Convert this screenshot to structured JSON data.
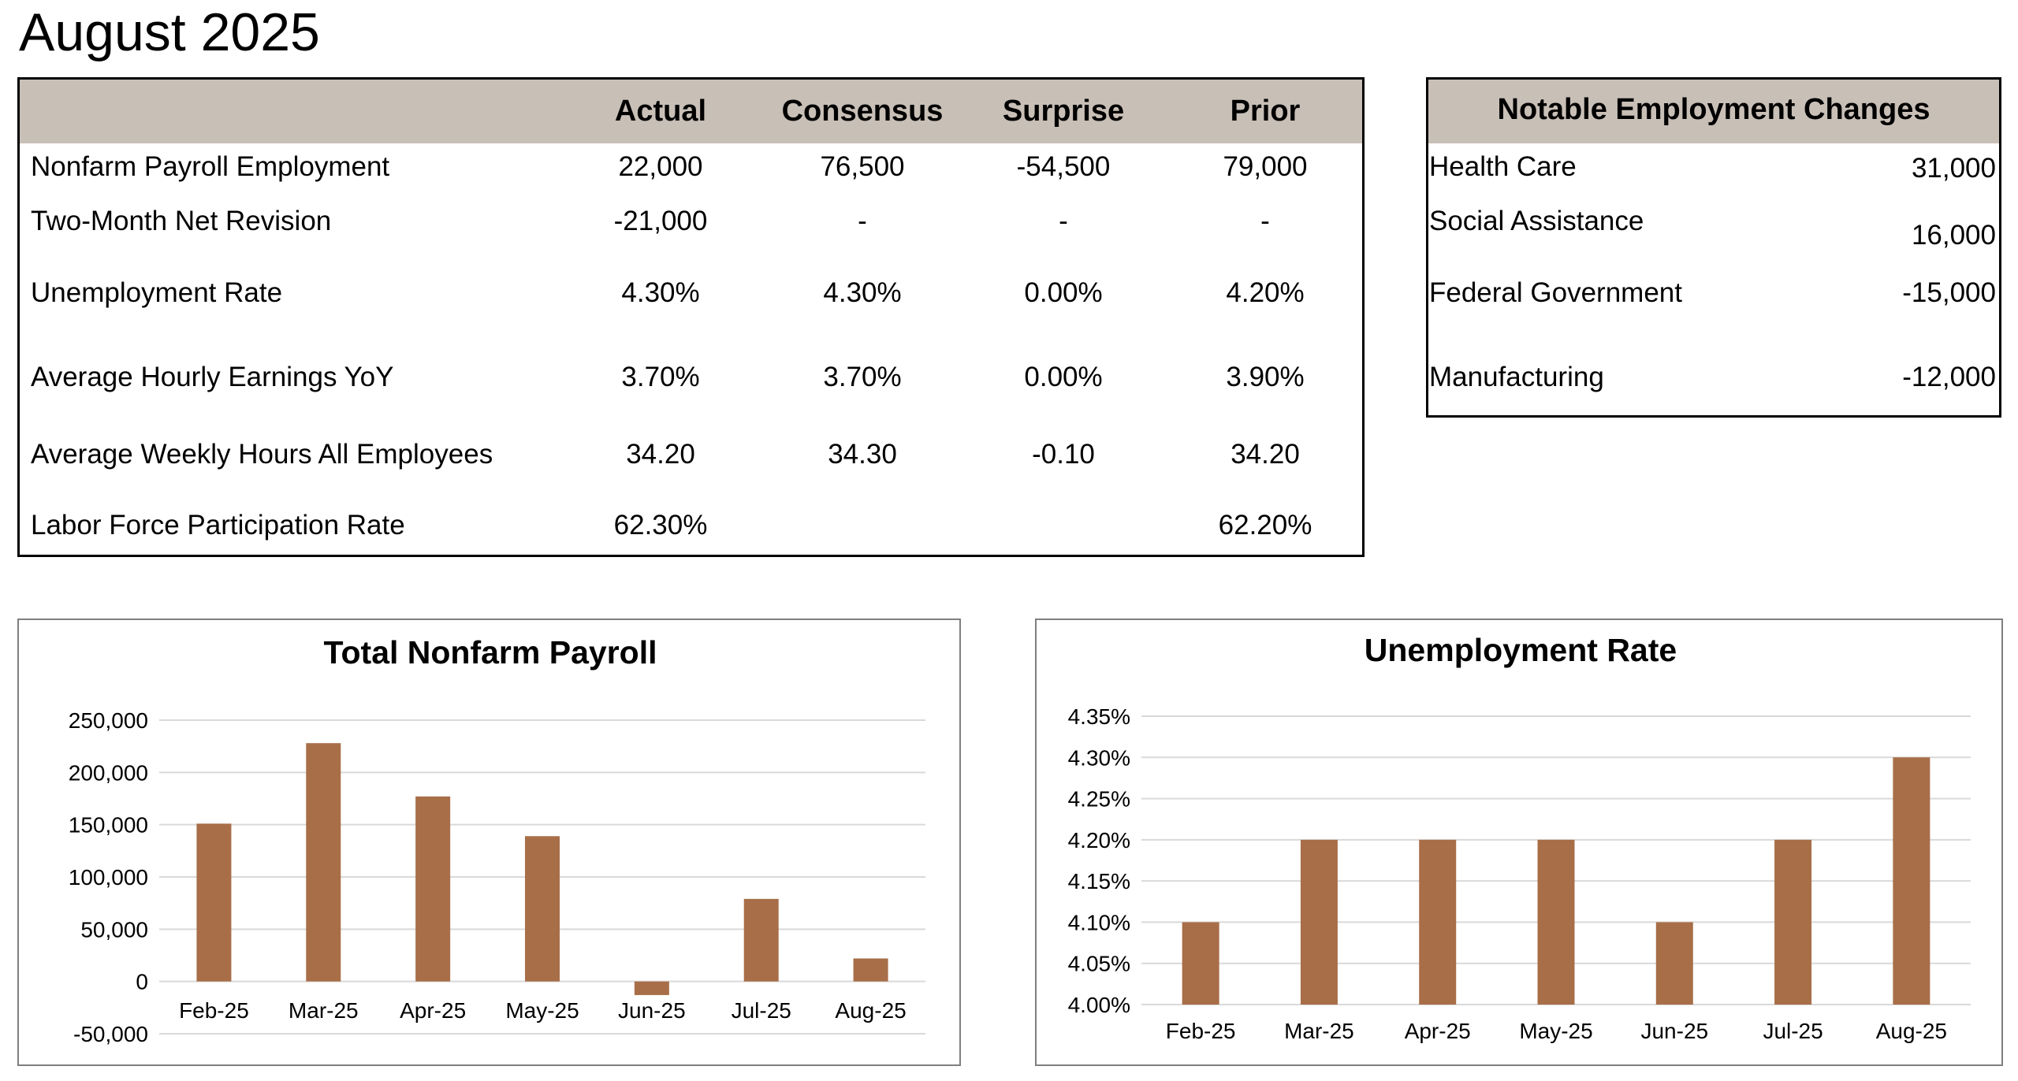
{
  "title": "August 2025",
  "main_table": {
    "columns": [
      "Actual",
      "Consensus",
      "Surprise",
      "Prior"
    ],
    "rows": [
      {
        "label": "Nonfarm Payroll Employment",
        "values": [
          "22,000",
          "76,500",
          "-54,500",
          "79,000"
        ]
      },
      {
        "label": "Two-Month Net Revision",
        "values": [
          "-21,000",
          "-",
          "-",
          "-"
        ]
      },
      {
        "label": "Unemployment Rate",
        "values": [
          "4.30%",
          "4.30%",
          "0.00%",
          "4.20%"
        ]
      },
      {
        "label": "Average Hourly Earnings YoY",
        "values": [
          "3.70%",
          "3.70%",
          "0.00%",
          "3.90%"
        ]
      },
      {
        "label": "Average Weekly Hours All Employees",
        "values": [
          "34.20",
          "34.30",
          "-0.10",
          "34.20"
        ]
      },
      {
        "label": "Labor Force Participation Rate",
        "values": [
          "62.30%",
          "",
          "",
          "62.20%"
        ]
      }
    ]
  },
  "notable": {
    "title": "Notable Employment Changes",
    "rows": [
      {
        "label": "Health Care",
        "value": "31,000"
      },
      {
        "label": "Social Assistance",
        "value": "16,000"
      },
      {
        "label": "Federal Government",
        "value": "-15,000"
      },
      {
        "label": "Manufacturing",
        "value": "-12,000"
      }
    ]
  },
  "colors": {
    "header_fill": "#c8bfb7",
    "bar": "#a86e48",
    "gridline": "#d9d9d9",
    "chart_border": "#7f7f7f"
  },
  "chart_data": [
    {
      "type": "bar",
      "title": "Total Nonfarm Payroll",
      "categories": [
        "Feb-25",
        "Mar-25",
        "Apr-25",
        "May-25",
        "Jun-25",
        "Jul-25",
        "Aug-25"
      ],
      "values": [
        151000,
        228000,
        177000,
        139000,
        -13000,
        79000,
        22000
      ],
      "ylim": [
        -50000,
        250000
      ],
      "yticks": [
        -50000,
        0,
        50000,
        100000,
        150000,
        200000,
        250000
      ],
      "ytick_labels": [
        "-50,000",
        "0",
        "50,000",
        "100,000",
        "150,000",
        "200,000",
        "250,000"
      ],
      "xlabel": "",
      "ylabel": "",
      "grid": true,
      "legend": "none"
    },
    {
      "type": "bar",
      "title": "Unemployment Rate",
      "categories": [
        "Feb-25",
        "Mar-25",
        "Apr-25",
        "May-25",
        "Jun-25",
        "Jul-25",
        "Aug-25"
      ],
      "values": [
        4.1,
        4.2,
        4.2,
        4.2,
        4.1,
        4.2,
        4.3
      ],
      "ylim": [
        4.0,
        4.35
      ],
      "yticks": [
        4.0,
        4.05,
        4.1,
        4.15,
        4.2,
        4.25,
        4.3,
        4.35
      ],
      "ytick_labels": [
        "4.00%",
        "4.05%",
        "4.10%",
        "4.15%",
        "4.20%",
        "4.25%",
        "4.30%",
        "4.35%"
      ],
      "xlabel": "",
      "ylabel": "",
      "grid": true,
      "legend": "none"
    }
  ]
}
